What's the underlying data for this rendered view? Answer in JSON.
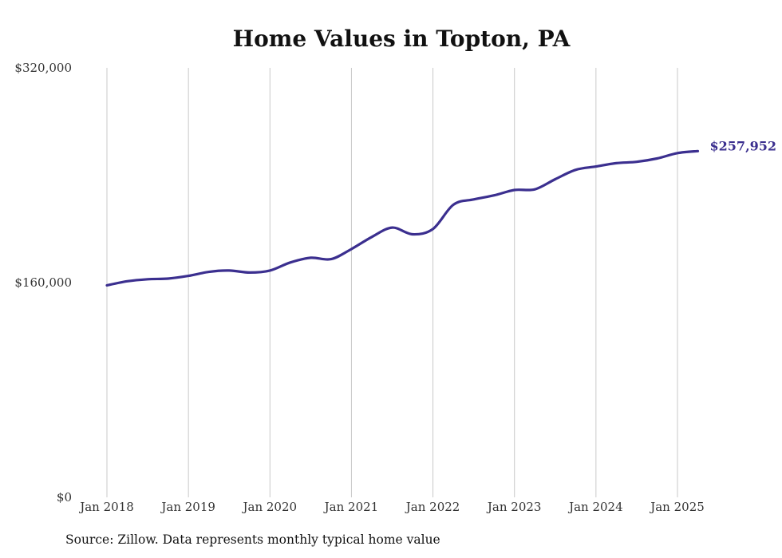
{
  "chart_data": {
    "type": "line",
    "title": "Home Values in Topton, PA",
    "xlabel": "",
    "ylabel": "",
    "ylim": [
      0,
      320000
    ],
    "y_ticks": [
      {
        "value": 0,
        "label": "$0"
      },
      {
        "value": 160000,
        "label": "$160,000"
      },
      {
        "value": 320000,
        "label": "$320,000"
      }
    ],
    "x_ticks": [
      {
        "value": 2018,
        "label": "Jan 2018"
      },
      {
        "value": 2019,
        "label": "Jan 2019"
      },
      {
        "value": 2020,
        "label": "Jan 2020"
      },
      {
        "value": 2021,
        "label": "Jan 2021"
      },
      {
        "value": 2022,
        "label": "Jan 2022"
      },
      {
        "value": 2023,
        "label": "Jan 2023"
      },
      {
        "value": 2024,
        "label": "Jan 2024"
      },
      {
        "value": 2025,
        "label": "Jan 2025"
      }
    ],
    "xlim": [
      2018,
      2025.25
    ],
    "grid": "vertical",
    "line_color": "#3b2f8f",
    "end_label": "$257,952",
    "series": [
      {
        "points": [
          [
            2018.0,
            158000
          ],
          [
            2018.25,
            161000
          ],
          [
            2018.5,
            162500
          ],
          [
            2018.75,
            163000
          ],
          [
            2019.0,
            165000
          ],
          [
            2019.25,
            168000
          ],
          [
            2019.5,
            169000
          ],
          [
            2019.75,
            167500
          ],
          [
            2020.0,
            169000
          ],
          [
            2020.25,
            175000
          ],
          [
            2020.5,
            178500
          ],
          [
            2020.75,
            177500
          ],
          [
            2021.0,
            185000
          ],
          [
            2021.25,
            194000
          ],
          [
            2021.5,
            201000
          ],
          [
            2021.75,
            196000
          ],
          [
            2022.0,
            200000
          ],
          [
            2022.25,
            218000
          ],
          [
            2022.5,
            222000
          ],
          [
            2022.75,
            225000
          ],
          [
            2023.0,
            229000
          ],
          [
            2023.25,
            229500
          ],
          [
            2023.5,
            237000
          ],
          [
            2023.75,
            244000
          ],
          [
            2024.0,
            246500
          ],
          [
            2024.25,
            249000
          ],
          [
            2024.5,
            250000
          ],
          [
            2024.75,
            252500
          ],
          [
            2025.0,
            256500
          ],
          [
            2025.25,
            257952
          ]
        ]
      }
    ]
  },
  "footer": {
    "source": "Source: Zillow. Data represents monthly typical home value"
  }
}
